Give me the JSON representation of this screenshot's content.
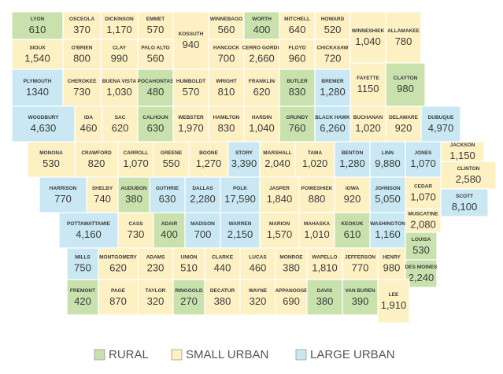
{
  "legend": [
    {
      "label": "RURAL",
      "color": "#c9e2ad"
    },
    {
      "label": "SMALL URBAN",
      "color": "#fdf1c4"
    },
    {
      "label": "LARGE URBAN",
      "color": "#c9e8f3"
    }
  ],
  "counties": [
    {
      "name": "LYON",
      "value": 610,
      "category": "RURAL"
    },
    {
      "name": "OSCEOLA",
      "value": 370,
      "category": "SMALL URBAN"
    },
    {
      "name": "DICKINSON",
      "value": 1170,
      "value_label": "1,170",
      "category": "SMALL URBAN"
    },
    {
      "name": "EMMET",
      "value": 570,
      "category": "SMALL URBAN"
    },
    {
      "name": "KOSSUTH",
      "value": 940,
      "category": "SMALL URBAN"
    },
    {
      "name": "WINNEBAGO",
      "value": 560,
      "category": "SMALL URBAN"
    },
    {
      "name": "WORTH",
      "value": 400,
      "category": "RURAL"
    },
    {
      "name": "MITCHELL",
      "value": 640,
      "category": "SMALL URBAN"
    },
    {
      "name": "HOWARD",
      "value": 520,
      "category": "SMALL URBAN"
    },
    {
      "name": "WINNESHIEK",
      "value": 1040,
      "value_label": "1,040",
      "category": "SMALL URBAN"
    },
    {
      "name": "ALLAMAKEE",
      "value": 780,
      "category": "SMALL URBAN"
    },
    {
      "name": "SIOUX",
      "value": 1540,
      "value_label": "1,540",
      "category": "SMALL URBAN"
    },
    {
      "name": "O'BRIEN",
      "value": 800,
      "category": "SMALL URBAN"
    },
    {
      "name": "CLAY",
      "value": 990,
      "category": "SMALL URBAN"
    },
    {
      "name": "PALO ALTO",
      "value": 560,
      "category": "SMALL URBAN"
    },
    {
      "name": "HANCOCK",
      "value": 700,
      "category": "SMALL URBAN"
    },
    {
      "name": "CERRO GORDO",
      "value": 2660,
      "value_label": "2,660",
      "category": "SMALL URBAN"
    },
    {
      "name": "FLOYD",
      "value": 960,
      "category": "SMALL URBAN"
    },
    {
      "name": "CHICKASAW",
      "value": 720,
      "category": "SMALL URBAN"
    },
    {
      "name": "FAYETTE",
      "value": 1150,
      "category": "SMALL URBAN"
    },
    {
      "name": "CLAYTON",
      "value": 980,
      "category": "RURAL"
    },
    {
      "name": "PLYMOUTH",
      "value": 1340,
      "category": "LARGE URBAN"
    },
    {
      "name": "CHEROKEE",
      "value": 730,
      "category": "SMALL URBAN"
    },
    {
      "name": "BUENA VISTA",
      "value": 1030,
      "value_label": "1,030",
      "category": "SMALL URBAN"
    },
    {
      "name": "POCAHONTAS",
      "value": 480,
      "category": "RURAL"
    },
    {
      "name": "HUMBOLDT",
      "value": 570,
      "category": "SMALL URBAN"
    },
    {
      "name": "WRIGHT",
      "value": 810,
      "category": "SMALL URBAN"
    },
    {
      "name": "FRANKLIN",
      "value": 620,
      "category": "SMALL URBAN"
    },
    {
      "name": "BUTLER",
      "value": 830,
      "category": "RURAL"
    },
    {
      "name": "BREMER",
      "value": 1280,
      "value_label": "1,280",
      "category": "LARGE URBAN"
    },
    {
      "name": "WOODBURY",
      "value": 4630,
      "value_label": "4,630",
      "category": "LARGE URBAN"
    },
    {
      "name": "IDA",
      "value": 460,
      "category": "SMALL URBAN"
    },
    {
      "name": "SAC",
      "value": 620,
      "category": "SMALL URBAN"
    },
    {
      "name": "CALHOUN",
      "value": 630,
      "category": "RURAL"
    },
    {
      "name": "WEBSTER",
      "value": 1970,
      "value_label": "1,970",
      "category": "SMALL URBAN"
    },
    {
      "name": "HAMILTON",
      "value": 830,
      "category": "SMALL URBAN"
    },
    {
      "name": "HARDIN",
      "value": 1040,
      "value_label": "1,040",
      "category": "SMALL URBAN"
    },
    {
      "name": "GRUNDY",
      "value": 760,
      "category": "RURAL"
    },
    {
      "name": "BLACK HAWK",
      "value": 6260,
      "value_label": "6,260",
      "category": "LARGE URBAN"
    },
    {
      "name": "BUCHANAN",
      "value": 1020,
      "value_label": "1,020",
      "category": "SMALL URBAN"
    },
    {
      "name": "DELAWARE",
      "value": 920,
      "category": "SMALL URBAN"
    },
    {
      "name": "DUBUQUE",
      "value": 4970,
      "value_label": "4,970",
      "category": "LARGE URBAN"
    },
    {
      "name": "MONONA",
      "value": 530,
      "category": "SMALL URBAN"
    },
    {
      "name": "CRAWFORD",
      "value": 820,
      "category": "SMALL URBAN"
    },
    {
      "name": "CARROLL",
      "value": 1070,
      "value_label": "1,070",
      "category": "SMALL URBAN"
    },
    {
      "name": "GREENE",
      "value": 550,
      "category": "SMALL URBAN"
    },
    {
      "name": "BOONE",
      "value": 1270,
      "value_label": "1,270",
      "category": "SMALL URBAN"
    },
    {
      "name": "STORY",
      "value": 3390,
      "value_label": "3,390",
      "category": "LARGE URBAN"
    },
    {
      "name": "MARSHALL",
      "value": 2040,
      "value_label": "2,040",
      "category": "SMALL URBAN"
    },
    {
      "name": "TAMA",
      "value": 1020,
      "value_label": "1,020",
      "category": "SMALL URBAN"
    },
    {
      "name": "BENTON",
      "value": 1280,
      "value_label": "1,280",
      "category": "LARGE URBAN"
    },
    {
      "name": "LINN",
      "value": 9880,
      "value_label": "9,880",
      "category": "LARGE URBAN"
    },
    {
      "name": "JONES",
      "value": 1070,
      "value_label": "1,070",
      "category": "LARGE URBAN"
    },
    {
      "name": "JACKSON",
      "value": 1150,
      "value_label": "1,150",
      "category": "SMALL URBAN"
    },
    {
      "name": "CLINTON",
      "value": 2580,
      "value_label": "2,580",
      "category": "SMALL URBAN"
    },
    {
      "name": "CEDAR",
      "value": 1070,
      "value_label": "1,070",
      "category": "SMALL URBAN"
    },
    {
      "name": "SCOTT",
      "value": 8100,
      "value_label": "8,100",
      "category": "LARGE URBAN"
    },
    {
      "name": "HARRISON",
      "value": 770,
      "category": "LARGE URBAN"
    },
    {
      "name": "SHELBY",
      "value": 740,
      "category": "SMALL URBAN"
    },
    {
      "name": "AUDUBON",
      "value": 380,
      "category": "RURAL"
    },
    {
      "name": "GUTHRIE",
      "value": 630,
      "category": "LARGE URBAN"
    },
    {
      "name": "DALLAS",
      "value": 2280,
      "value_label": "2,280",
      "category": "LARGE URBAN"
    },
    {
      "name": "POLK",
      "value": 17590,
      "value_label": "17,590",
      "category": "LARGE URBAN"
    },
    {
      "name": "JASPER",
      "value": 1840,
      "value_label": "1,840",
      "category": "SMALL URBAN"
    },
    {
      "name": "POWESHIEK",
      "value": 880,
      "category": "SMALL URBAN"
    },
    {
      "name": "IOWA",
      "value": 920,
      "category": "SMALL URBAN"
    },
    {
      "name": "JOHNSON",
      "value": 5050,
      "value_label": "5,050",
      "category": "LARGE URBAN"
    },
    {
      "name": "MUSCATINE",
      "value": 2080,
      "value_label": "2,080",
      "category": "SMALL URBAN"
    },
    {
      "name": "POTTAWATTAMIE",
      "value": 4160,
      "value_label": "4,160",
      "category": "LARGE URBAN"
    },
    {
      "name": "CASS",
      "value": 730,
      "category": "SMALL URBAN"
    },
    {
      "name": "ADAIR",
      "value": 400,
      "category": "RURAL"
    },
    {
      "name": "MADISON",
      "value": 700,
      "category": "LARGE URBAN"
    },
    {
      "name": "WARREN",
      "value": 2150,
      "value_label": "2,150",
      "category": "LARGE URBAN"
    },
    {
      "name": "MARION",
      "value": 1570,
      "value_label": "1,570",
      "category": "SMALL URBAN"
    },
    {
      "name": "MAHASKA",
      "value": 1010,
      "value_label": "1,010",
      "category": "SMALL URBAN"
    },
    {
      "name": "KEOKUK",
      "value": 610,
      "category": "RURAL"
    },
    {
      "name": "WASHINGTON",
      "value": 1160,
      "value_label": "1,160",
      "category": "LARGE URBAN"
    },
    {
      "name": "LOUISA",
      "value": 530,
      "category": "RURAL"
    },
    {
      "name": "MILLS",
      "value": 750,
      "category": "LARGE URBAN"
    },
    {
      "name": "MONTGOMERY",
      "value": 620,
      "category": "SMALL URBAN"
    },
    {
      "name": "ADAMS",
      "value": 230,
      "category": "SMALL URBAN"
    },
    {
      "name": "UNION",
      "value": 510,
      "category": "SMALL URBAN"
    },
    {
      "name": "CLARKE",
      "value": 440,
      "category": "SMALL URBAN"
    },
    {
      "name": "LUCAS",
      "value": 460,
      "category": "SMALL URBAN"
    },
    {
      "name": "MONROE",
      "value": 380,
      "category": "SMALL URBAN"
    },
    {
      "name": "WAPELLO",
      "value": 1810,
      "value_label": "1,810",
      "category": "SMALL URBAN"
    },
    {
      "name": "JEFFERSON",
      "value": 770,
      "category": "SMALL URBAN"
    },
    {
      "name": "HENRY",
      "value": 980,
      "category": "SMALL URBAN"
    },
    {
      "name": "DES MOINES",
      "value": 2240,
      "value_label": "2,240",
      "category": "RURAL"
    },
    {
      "name": "FREMONT",
      "value": 420,
      "category": "RURAL"
    },
    {
      "name": "PAGE",
      "value": 870,
      "category": "SMALL URBAN"
    },
    {
      "name": "TAYLOR",
      "value": 320,
      "category": "SMALL URBAN"
    },
    {
      "name": "RINGGOLD",
      "value": 270,
      "category": "RURAL"
    },
    {
      "name": "DECATUR",
      "value": 380,
      "category": "SMALL URBAN"
    },
    {
      "name": "WAYNE",
      "value": 320,
      "category": "SMALL URBAN"
    },
    {
      "name": "APPANOOSE",
      "value": 690,
      "category": "SMALL URBAN"
    },
    {
      "name": "DAVIS",
      "value": 380,
      "category": "RURAL"
    },
    {
      "name": "VAN BUREN",
      "value": 390,
      "category": "RURAL"
    },
    {
      "name": "LEE",
      "value": 1910,
      "value_label": "1,910",
      "category": "SMALL URBAN"
    }
  ]
}
